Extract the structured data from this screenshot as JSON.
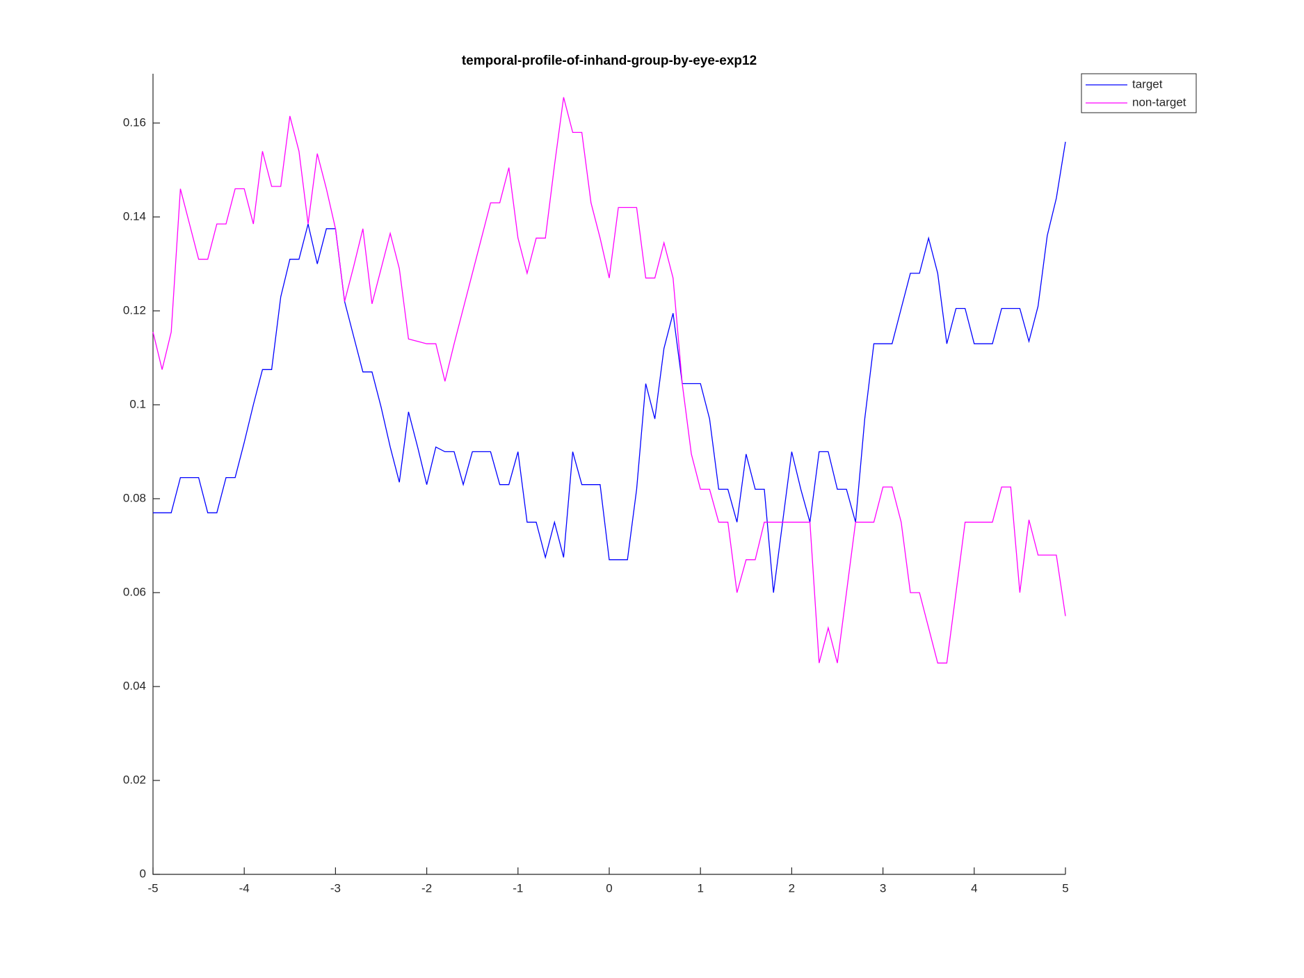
{
  "chart_data": {
    "type": "line",
    "title": "temporal-profile-of-inhand-group-by-eye-exp12",
    "x": [
      -5,
      -4.9,
      -4.8,
      -4.7,
      -4.6,
      -4.5,
      -4.4,
      -4.3,
      -4.2,
      -4.1,
      -4,
      -3.9,
      -3.8,
      -3.7,
      -3.6,
      -3.5,
      -3.4,
      -3.3,
      -3.2,
      -3.1,
      -3,
      -2.9,
      -2.8,
      -2.7,
      -2.6,
      -2.5,
      -2.4,
      -2.3,
      -2.2,
      -2.1,
      -2,
      -1.9,
      -1.8,
      -1.7,
      -1.6,
      -1.5,
      -1.4,
      -1.3,
      -1.2,
      -1.1,
      -1,
      -0.9,
      -0.8,
      -0.7,
      -0.6,
      -0.5,
      -0.4,
      -0.3,
      -0.2,
      -0.1,
      0,
      0.1,
      0.2,
      0.3,
      0.4,
      0.5,
      0.6,
      0.7,
      0.8,
      0.9,
      1,
      1.1,
      1.2,
      1.3,
      1.4,
      1.5,
      1.6,
      1.7,
      1.8,
      1.9,
      2,
      2.1,
      2.2,
      2.3,
      2.4,
      2.5,
      2.6,
      2.7,
      2.8,
      2.9,
      3,
      3.1,
      3.2,
      3.3,
      3.4,
      3.5,
      3.6,
      3.7,
      3.8,
      3.9,
      4,
      4.1,
      4.2,
      4.3,
      4.4,
      4.5,
      4.6,
      4.7,
      4.8,
      4.9,
      5
    ],
    "series": [
      {
        "name": "target",
        "color": "#0000ff",
        "values": [
          0.077,
          0.077,
          0.077,
          0.0845,
          0.0845,
          0.0845,
          0.077,
          0.077,
          0.0845,
          0.0845,
          0.092,
          0.1,
          0.1075,
          0.1075,
          0.123,
          0.131,
          0.131,
          0.1385,
          0.13,
          0.1375,
          0.1375,
          0.122,
          0.1145,
          0.107,
          0.107,
          0.0995,
          0.091,
          0.0835,
          0.0985,
          0.091,
          0.083,
          0.091,
          0.09,
          0.09,
          0.083,
          0.09,
          0.09,
          0.09,
          0.083,
          0.083,
          0.09,
          0.075,
          0.075,
          0.0675,
          0.075,
          0.0675,
          0.09,
          0.083,
          0.083,
          0.083,
          0.067,
          0.067,
          0.067,
          0.082,
          0.1045,
          0.097,
          0.112,
          0.1195,
          0.1045,
          0.1045,
          0.1045,
          0.097,
          0.082,
          0.082,
          0.075,
          0.0895,
          0.082,
          0.082,
          0.06,
          0.075,
          0.09,
          0.082,
          0.075,
          0.09,
          0.09,
          0.082,
          0.082,
          0.075,
          0.097,
          0.113,
          0.113,
          0.113,
          0.1205,
          0.128,
          0.128,
          0.1355,
          0.128,
          0.113,
          0.1205,
          0.1205,
          0.113,
          0.113,
          0.113,
          0.1205,
          0.1205,
          0.1205,
          0.1135,
          0.121,
          0.136,
          0.144,
          0.156
        ]
      },
      {
        "name": "non-target",
        "color": "#ff00ff",
        "values": [
          0.1155,
          0.1075,
          0.1155,
          0.146,
          0.1385,
          0.131,
          0.131,
          0.1385,
          0.1385,
          0.146,
          0.146,
          0.1385,
          0.154,
          0.1465,
          0.1465,
          0.1615,
          0.154,
          0.1385,
          0.1535,
          0.146,
          0.1375,
          0.122,
          0.1295,
          0.1375,
          0.1215,
          0.129,
          0.1365,
          0.129,
          0.114,
          0.1135,
          0.113,
          0.113,
          0.105,
          0.113,
          0.1205,
          0.128,
          0.1355,
          0.143,
          0.143,
          0.1505,
          0.1355,
          0.128,
          0.1355,
          0.1355,
          0.151,
          0.1655,
          0.158,
          0.158,
          0.143,
          0.1355,
          0.127,
          0.142,
          0.142,
          0.142,
          0.127,
          0.127,
          0.1345,
          0.127,
          0.1045,
          0.0895,
          0.082,
          0.082,
          0.075,
          0.075,
          0.06,
          0.067,
          0.067,
          0.075,
          0.075,
          0.075,
          0.075,
          0.075,
          0.075,
          0.045,
          0.0525,
          0.045,
          0.06,
          0.075,
          0.075,
          0.075,
          0.0825,
          0.0825,
          0.075,
          0.06,
          0.06,
          0.0525,
          0.045,
          0.045,
          0.06,
          0.075,
          0.075,
          0.075,
          0.075,
          0.0825,
          0.0825,
          0.06,
          0.0755,
          0.068,
          0.068,
          0.068,
          0.055
        ]
      }
    ],
    "xlim": [
      -5,
      5
    ],
    "xticks": [
      -5,
      -4,
      -3,
      -2,
      -1,
      0,
      1,
      2,
      3,
      4,
      5
    ],
    "ylim": [
      0,
      0.1705
    ],
    "yticks": [
      0,
      0.02,
      0.04,
      0.06,
      0.08,
      0.1,
      0.12,
      0.14,
      0.16
    ],
    "grid": false,
    "legend": "top-right"
  }
}
